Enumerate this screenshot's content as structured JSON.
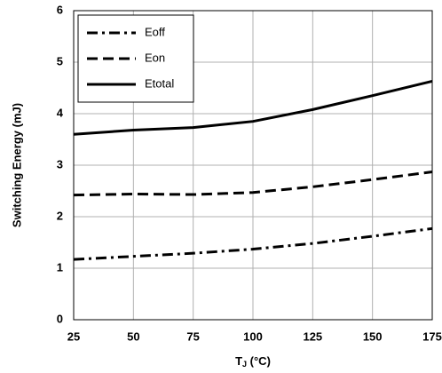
{
  "chart_data": {
    "type": "line",
    "x_label": [
      "T",
      "J",
      " (°C)"
    ],
    "y_label": "Switching Energy (mJ)",
    "x": [
      25,
      50,
      75,
      100,
      125,
      150,
      175
    ],
    "series": [
      {
        "name": "Eoff",
        "color": "#000000",
        "style": "dashdot",
        "values": [
          1.17,
          1.23,
          1.29,
          1.37,
          1.48,
          1.62,
          1.77
        ]
      },
      {
        "name": "Eon",
        "color": "#000000",
        "style": "dashed",
        "values": [
          2.42,
          2.44,
          2.43,
          2.47,
          2.58,
          2.72,
          2.87
        ]
      },
      {
        "name": "Etotal",
        "color": "#000000",
        "style": "solid",
        "values": [
          3.6,
          3.68,
          3.73,
          3.85,
          4.08,
          4.35,
          4.63
        ]
      }
    ],
    "xlim": [
      25,
      175
    ],
    "xticks": [
      25,
      50,
      75,
      100,
      125,
      150,
      175
    ],
    "ylim": [
      0,
      6
    ],
    "yticks": [
      0,
      1,
      2,
      3,
      4,
      5,
      6
    ],
    "grid": true,
    "legend": "top-left"
  }
}
